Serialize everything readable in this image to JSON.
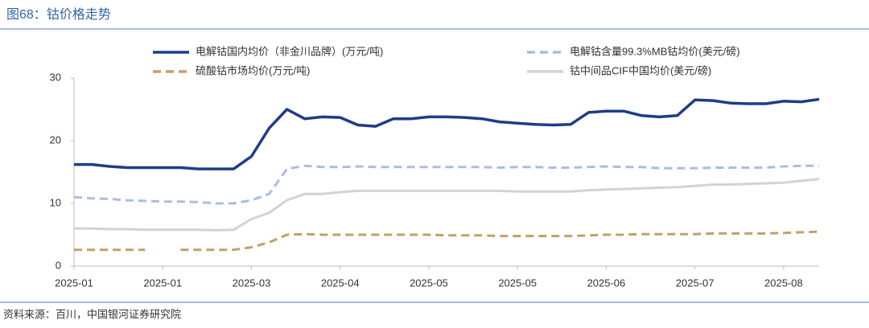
{
  "chart_data": {
    "type": "line",
    "title": "图68：钴价格走势",
    "source": "资料来源：百川，中国银河证券研究院",
    "categories": [
      "2025-01",
      null,
      null,
      null,
      null,
      "2025-01",
      null,
      null,
      null,
      null,
      "2025-03",
      null,
      null,
      null,
      null,
      "2025-04",
      null,
      null,
      null,
      null,
      "2025-05",
      null,
      null,
      null,
      null,
      "2025-05",
      null,
      null,
      null,
      null,
      "2025-06",
      null,
      null,
      null,
      null,
      "2025-07",
      null,
      null,
      null,
      null,
      "2025-08",
      null,
      null
    ],
    "ylim": [
      0,
      30
    ],
    "yticks": [
      0,
      10,
      20,
      30
    ],
    "grid": false,
    "series": [
      {
        "name": "电解钴国内均价（非金川品牌）(万元/吨)",
        "color": "#1f3c88",
        "dash": false,
        "values": [
          16.2,
          16.2,
          15.9,
          15.7,
          15.7,
          15.7,
          15.7,
          15.5,
          15.5,
          15.5,
          17.5,
          22,
          25,
          23.5,
          23.8,
          23.7,
          22.5,
          22.3,
          23.5,
          23.5,
          23.8,
          23.8,
          23.7,
          23.5,
          23,
          22.8,
          22.6,
          22.5,
          22.6,
          24.5,
          24.7,
          24.7,
          24,
          23.8,
          24,
          26.5,
          26.4,
          26,
          25.9,
          25.9,
          26.3,
          26.2,
          26.6
        ]
      },
      {
        "name": "电解钴含量99.3%MB钴均价(美元/磅)",
        "color": "#a9bde0",
        "dash": true,
        "values": [
          11,
          10.8,
          10.7,
          10.5,
          10.4,
          10.3,
          10.3,
          10.2,
          10,
          10,
          10.5,
          11.5,
          15.5,
          16,
          15.8,
          15.8,
          15.9,
          15.8,
          15.8,
          15.8,
          15.8,
          15.8,
          15.8,
          15.8,
          15.7,
          15.8,
          15.8,
          15.7,
          15.7,
          15.8,
          15.9,
          15.8,
          15.8,
          15.6,
          15.6,
          15.6,
          15.7,
          15.7,
          15.7,
          15.7,
          15.9,
          16,
          16
        ]
      },
      {
        "name": "硫酸钴市场均价(万元/吨)",
        "color": "#c2a068",
        "dash": true,
        "values": [
          2.6,
          2.6,
          2.6,
          2.6,
          2.6,
          null,
          2.6,
          2.6,
          2.6,
          2.6,
          3,
          3.8,
          5,
          5.1,
          5,
          5,
          5,
          5,
          5,
          5,
          5,
          4.9,
          4.9,
          4.9,
          4.8,
          4.8,
          4.8,
          4.8,
          4.8,
          4.9,
          5,
          5,
          5.1,
          5.1,
          5.1,
          5.1,
          5.2,
          5.2,
          5.2,
          5.2,
          5.3,
          5.4,
          5.5
        ]
      },
      {
        "name": "钴中间品CIF中国均价(美元/磅)",
        "color": "#d3d3d3",
        "dash": false,
        "values": [
          6,
          6,
          5.9,
          5.9,
          5.8,
          5.8,
          5.8,
          5.8,
          5.7,
          5.8,
          7.5,
          8.5,
          10.5,
          11.5,
          11.5,
          11.8,
          12,
          12,
          12,
          12,
          12,
          12,
          12,
          12,
          12,
          11.9,
          11.9,
          11.9,
          11.9,
          12.1,
          12.2,
          12.3,
          12.4,
          12.5,
          12.6,
          12.8,
          13,
          13,
          13.1,
          13.2,
          13.3,
          13.6,
          13.9
        ]
      }
    ]
  }
}
